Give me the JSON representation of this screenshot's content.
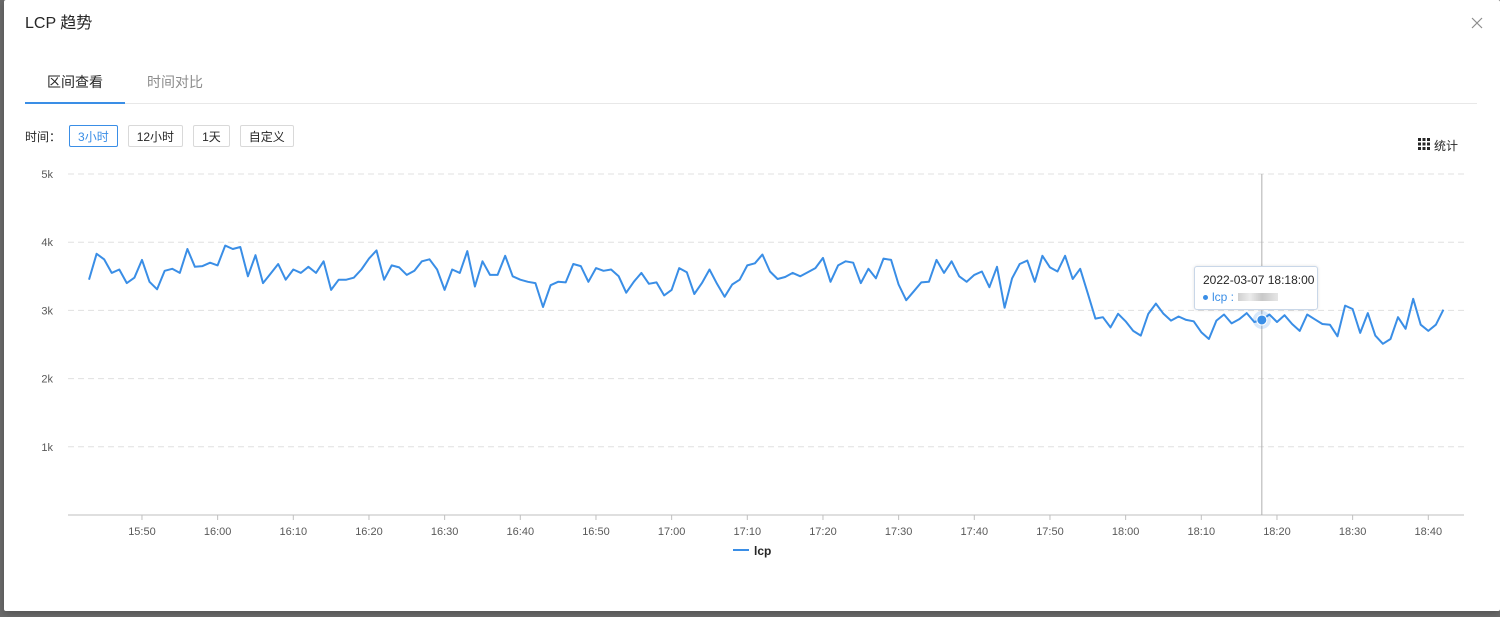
{
  "modal": {
    "title": "LCP 趋势",
    "close_icon": "close-icon"
  },
  "tabs": [
    {
      "label": "区间查看",
      "active": true
    },
    {
      "label": "时间对比",
      "active": false
    }
  ],
  "range": {
    "label": "时间：",
    "buttons": [
      {
        "label": "3小时",
        "active": true
      },
      {
        "label": "12小时",
        "active": false
      },
      {
        "label": "1天",
        "active": false
      },
      {
        "label": "自定义",
        "active": false
      }
    ]
  },
  "stats": {
    "label": "统计",
    "icon": "grid-icon"
  },
  "tooltip": {
    "time": "2022-03-07 18:18:00",
    "series": "lcp"
  },
  "colors": {
    "line": "#3a8ee6",
    "accent": "#3a8ee6"
  },
  "chart_data": {
    "type": "line",
    "title": "",
    "xlabel": "",
    "ylabel": "",
    "ylim": [
      0,
      5000
    ],
    "y_ticks": [
      "1k",
      "2k",
      "3k",
      "4k",
      "5k"
    ],
    "x_tick_labels": [
      "15:50",
      "16:00",
      "16:10",
      "16:20",
      "16:30",
      "16:40",
      "16:50",
      "17:00",
      "17:10",
      "17:20",
      "17:30",
      "17:40",
      "17:50",
      "18:00",
      "18:10",
      "18:20",
      "18:30",
      "18:40"
    ],
    "x_start": "15:43",
    "x_end": "18:43",
    "x_step_minutes": 1,
    "grid": true,
    "legend_position": "bottom",
    "highlight_time": "18:18",
    "series": [
      {
        "name": "lcp",
        "values": [
          3450,
          3830,
          3750,
          3550,
          3600,
          3400,
          3480,
          3740,
          3420,
          3310,
          3580,
          3610,
          3550,
          3900,
          3640,
          3650,
          3700,
          3660,
          3950,
          3900,
          3930,
          3500,
          3810,
          3400,
          3540,
          3680,
          3450,
          3600,
          3550,
          3640,
          3550,
          3720,
          3300,
          3450,
          3450,
          3480,
          3600,
          3760,
          3880,
          3450,
          3660,
          3630,
          3520,
          3580,
          3720,
          3750,
          3600,
          3300,
          3600,
          3550,
          3870,
          3350,
          3720,
          3520,
          3520,
          3800,
          3500,
          3450,
          3420,
          3400,
          3050,
          3370,
          3420,
          3410,
          3680,
          3650,
          3420,
          3620,
          3580,
          3600,
          3500,
          3260,
          3420,
          3550,
          3390,
          3410,
          3220,
          3300,
          3620,
          3560,
          3240,
          3400,
          3600,
          3390,
          3200,
          3380,
          3450,
          3660,
          3690,
          3820,
          3570,
          3460,
          3490,
          3550,
          3500,
          3560,
          3620,
          3770,
          3420,
          3660,
          3720,
          3700,
          3400,
          3610,
          3470,
          3760,
          3740,
          3380,
          3150,
          3280,
          3410,
          3420,
          3740,
          3550,
          3720,
          3500,
          3420,
          3520,
          3570,
          3340,
          3640,
          3040,
          3470,
          3680,
          3730,
          3420,
          3800,
          3630,
          3570,
          3800,
          3460,
          3610,
          3250,
          2880,
          2900,
          2750,
          2950,
          2840,
          2700,
          2630,
          2950,
          3100,
          2950,
          2850,
          2910,
          2860,
          2840,
          2680,
          2580,
          2850,
          2940,
          2810,
          2870,
          2960,
          2830,
          2860,
          2940,
          2830,
          2930,
          2800,
          2700,
          2940,
          2870,
          2800,
          2790,
          2620,
          3070,
          3020,
          2670,
          2960,
          2630,
          2510,
          2580,
          2900,
          2730,
          3170,
          2790,
          2700,
          2790,
          3010
        ]
      }
    ]
  }
}
